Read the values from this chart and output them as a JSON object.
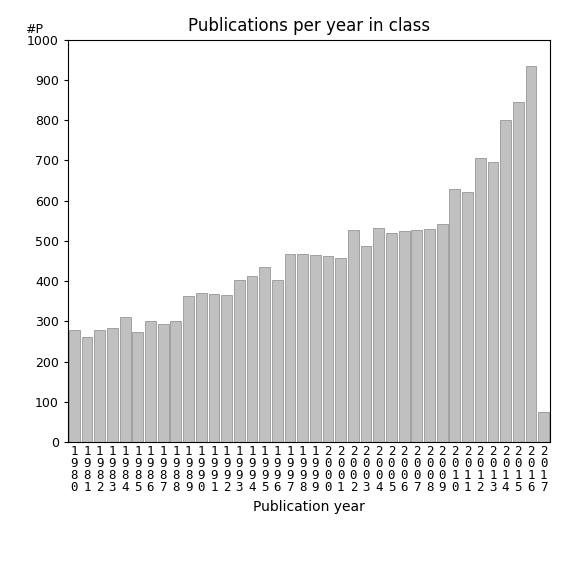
{
  "title": "Publications per year in class",
  "xlabel": "Publication year",
  "ylabel": "#P",
  "bar_color": "#c0c0c0",
  "bar_edge_color": "#888888",
  "background_color": "#ffffff",
  "ylim": [
    0,
    1000
  ],
  "yticks": [
    0,
    100,
    200,
    300,
    400,
    500,
    600,
    700,
    800,
    900,
    1000
  ],
  "years": [
    1980,
    1981,
    1982,
    1983,
    1984,
    1985,
    1986,
    1987,
    1988,
    1989,
    1990,
    1991,
    1992,
    1993,
    1994,
    1995,
    1996,
    1997,
    1998,
    1999,
    2000,
    2001,
    2002,
    2003,
    2004,
    2005,
    2006,
    2007,
    2008,
    2009,
    2010,
    2011,
    2012,
    2013,
    2014,
    2015,
    2016,
    2017
  ],
  "values": [
    278,
    262,
    280,
    283,
    310,
    275,
    302,
    295,
    300,
    364,
    370,
    368,
    365,
    403,
    412,
    436,
    402,
    468,
    468,
    465,
    462,
    458,
    528,
    488,
    532,
    520,
    525,
    527,
    530,
    543,
    630,
    622,
    707,
    696,
    800,
    845,
    935,
    75
  ],
  "title_fontsize": 12,
  "axis_label_fontsize": 10,
  "tick_fontsize": 9,
  "ylabel_fontsize": 9
}
